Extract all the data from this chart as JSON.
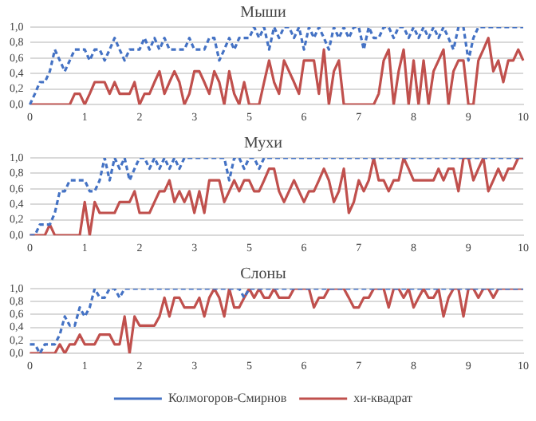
{
  "chart_data": [
    {
      "type": "line",
      "title": "Мыши",
      "categories": [
        "0",
        null,
        null,
        null,
        null,
        null,
        null,
        null,
        null,
        null,
        null,
        "1",
        null,
        null,
        null,
        null,
        null,
        null,
        null,
        null,
        null,
        null,
        "2",
        null,
        null,
        null,
        null,
        null,
        null,
        null,
        null,
        null,
        null,
        "3",
        null,
        null,
        null,
        null,
        null,
        null,
        null,
        null,
        null,
        null,
        "5",
        null,
        null,
        null,
        null,
        null,
        null,
        null,
        null,
        null,
        null,
        "6",
        null,
        null,
        null,
        null,
        null,
        null,
        null,
        null,
        null,
        null,
        "7",
        null,
        null,
        null,
        null,
        null,
        null,
        null,
        null,
        null,
        null,
        "8",
        null,
        null,
        null,
        null,
        null,
        null,
        null,
        null,
        null,
        null,
        "9",
        null,
        null,
        null,
        null,
        null,
        null,
        null,
        null,
        null,
        null,
        "10"
      ],
      "series": [
        {
          "color": "#4472c4",
          "line_style": "dashed",
          "values": [
            0,
            0.14,
            0.29,
            0.29,
            0.43,
            0.71,
            0.57,
            0.43,
            0.57,
            0.71,
            0.71,
            0.71,
            0.57,
            0.71,
            0.71,
            0.57,
            0.71,
            0.86,
            0.71,
            0.57,
            0.71,
            0.71,
            0.71,
            0.86,
            0.71,
            0.86,
            0.71,
            0.86,
            0.71,
            0.71,
            0.71,
            0.71,
            0.86,
            0.71,
            0.71,
            0.71,
            0.86,
            0.86,
            0.57,
            0.71,
            0.86,
            0.71,
            0.86,
            0.86,
            0.86,
            1,
            0.86,
            1,
            0.71,
            1,
            0.86,
            1,
            1,
            0.86,
            1,
            0.71,
            1,
            0.86,
            1,
            0.86,
            0.71,
            1,
            0.86,
            1,
            0.86,
            1,
            1,
            0.71,
            1,
            0.86,
            0.86,
            1,
            1,
            0.86,
            1,
            1,
            0.86,
            1,
            0.86,
            1,
            0.86,
            1,
            0.86,
            1,
            0.86,
            0.71,
            1,
            1,
            0.57,
            0.86,
            1,
            1,
            1,
            1,
            1,
            1,
            1,
            1,
            1,
            1
          ]
        },
        {
          "color": "#c0504d",
          "line_style": "solid",
          "values": [
            0,
            0,
            0,
            0,
            0,
            0,
            0,
            0,
            0,
            0.14,
            0.14,
            0,
            0.14,
            0.29,
            0.29,
            0.29,
            0.14,
            0.29,
            0.14,
            0.14,
            0.14,
            0.29,
            0,
            0.14,
            0.14,
            0.29,
            0.43,
            0.14,
            0.29,
            0.43,
            0.29,
            0,
            0.14,
            0.43,
            0.43,
            0.29,
            0.14,
            0.43,
            0.29,
            0,
            0.43,
            0.14,
            0,
            0.29,
            0,
            0,
            0,
            0.29,
            0.57,
            0.29,
            0.14,
            0.57,
            0.43,
            0.29,
            0.14,
            0.57,
            0.57,
            0.57,
            0.14,
            0.71,
            0,
            0.43,
            0.57,
            0,
            0,
            0,
            0,
            0,
            0,
            0,
            0.14,
            0.57,
            0.71,
            0,
            0.43,
            0.71,
            0,
            0.57,
            0,
            0.57,
            0,
            0.43,
            0.57,
            0.71,
            0,
            0.43,
            0.57,
            0.57,
            0,
            0,
            0.57,
            0.71,
            0.86,
            0.43,
            0.57,
            0.29,
            0.57,
            0.57,
            0.71,
            0.57
          ]
        }
      ],
      "ylim": [
        0,
        1
      ],
      "yticks": [
        {
          "value": 0,
          "label": "0,0"
        },
        {
          "value": 0.2,
          "label": "0,2"
        },
        {
          "value": 0.4,
          "label": "0,4"
        },
        {
          "value": 0.6,
          "label": "0,6"
        },
        {
          "value": 0.8,
          "label": "0,8"
        },
        {
          "value": 1,
          "label": "1,0"
        }
      ],
      "grid": "y",
      "legend": false
    },
    {
      "type": "line",
      "title": "Мухи",
      "categories": [
        "0",
        null,
        null,
        null,
        null,
        null,
        null,
        null,
        null,
        null,
        null,
        "1",
        null,
        null,
        null,
        null,
        null,
        null,
        null,
        null,
        null,
        null,
        "2",
        null,
        null,
        null,
        null,
        null,
        null,
        null,
        null,
        null,
        null,
        "3",
        null,
        null,
        null,
        null,
        null,
        null,
        null,
        null,
        null,
        null,
        "5",
        null,
        null,
        null,
        null,
        null,
        null,
        null,
        null,
        null,
        null,
        "6",
        null,
        null,
        null,
        null,
        null,
        null,
        null,
        null,
        null,
        null,
        "7",
        null,
        null,
        null,
        null,
        null,
        null,
        null,
        null,
        null,
        null,
        "8",
        null,
        null,
        null,
        null,
        null,
        null,
        null,
        null,
        null,
        null,
        "9",
        null,
        null,
        null,
        null,
        null,
        null,
        null,
        null,
        null,
        null,
        "10"
      ],
      "series": [
        {
          "color": "#4472c4",
          "line_style": "dashed",
          "values": [
            0,
            0,
            0.14,
            0.14,
            0.14,
            0.29,
            0.57,
            0.57,
            0.71,
            0.71,
            0.71,
            0.71,
            0.57,
            0.57,
            0.71,
            1,
            0.71,
            1,
            0.86,
            1,
            0.71,
            0.86,
            1,
            1,
            0.86,
            1,
            0.86,
            1,
            0.86,
            1,
            0.86,
            1,
            1,
            1,
            1,
            1,
            1,
            1,
            1,
            1,
            0.71,
            1,
            1,
            0.86,
            1,
            1,
            0.86,
            1,
            1,
            1,
            1,
            1,
            1,
            1,
            1,
            1,
            1,
            1,
            1,
            1,
            1,
            1,
            1,
            1,
            1,
            1,
            1,
            1,
            1,
            1,
            1,
            1,
            1,
            1,
            1,
            1,
            1,
            1,
            1,
            1,
            1,
            1,
            1,
            1,
            1,
            1,
            1,
            1,
            1,
            1,
            1,
            1,
            1,
            1,
            1,
            1,
            1,
            1,
            1,
            1
          ]
        },
        {
          "color": "#c0504d",
          "line_style": "solid",
          "values": [
            0,
            0,
            0,
            0,
            0.14,
            0,
            0,
            0,
            0,
            0,
            0,
            0.43,
            0,
            0.43,
            0.29,
            0.29,
            0.29,
            0.29,
            0.43,
            0.43,
            0.43,
            0.57,
            0.29,
            0.29,
            0.29,
            0.43,
            0.57,
            0.57,
            0.71,
            0.43,
            0.57,
            0.43,
            0.57,
            0.29,
            0.57,
            0.29,
            0.71,
            0.71,
            0.71,
            0.43,
            0.57,
            0.71,
            0.57,
            0.71,
            0.71,
            0.57,
            0.57,
            0.71,
            0.86,
            0.86,
            0.57,
            0.43,
            0.57,
            0.71,
            0.57,
            0.43,
            0.57,
            0.57,
            0.71,
            0.86,
            0.71,
            0.43,
            0.57,
            0.86,
            0.29,
            0.43,
            0.71,
            0.57,
            0.71,
            1,
            0.71,
            0.71,
            0.57,
            0.71,
            0.71,
            1,
            0.86,
            0.71,
            0.71,
            0.71,
            0.71,
            0.71,
            0.86,
            0.71,
            0.86,
            0.86,
            0.57,
            1,
            1,
            0.71,
            0.86,
            1,
            0.57,
            0.71,
            0.86,
            0.71,
            0.86,
            0.86,
            1,
            1
          ]
        }
      ],
      "ylim": [
        0,
        1
      ],
      "yticks": [
        {
          "value": 0,
          "label": "0,0"
        },
        {
          "value": 0.2,
          "label": "0,2"
        },
        {
          "value": 0.4,
          "label": "0,4"
        },
        {
          "value": 0.6,
          "label": "0,6"
        },
        {
          "value": 0.8,
          "label": "0,8"
        },
        {
          "value": 1,
          "label": "1,0"
        }
      ],
      "grid": "y",
      "legend": false
    },
    {
      "type": "line",
      "title": "Слоны",
      "categories": [
        "0",
        null,
        null,
        null,
        null,
        null,
        null,
        null,
        null,
        null,
        null,
        "1",
        null,
        null,
        null,
        null,
        null,
        null,
        null,
        null,
        null,
        null,
        "2",
        null,
        null,
        null,
        null,
        null,
        null,
        null,
        null,
        null,
        null,
        "3",
        null,
        null,
        null,
        null,
        null,
        null,
        null,
        null,
        null,
        null,
        "5",
        null,
        null,
        null,
        null,
        null,
        null,
        null,
        null,
        null,
        null,
        "6",
        null,
        null,
        null,
        null,
        null,
        null,
        null,
        null,
        null,
        null,
        "7",
        null,
        null,
        null,
        null,
        null,
        null,
        null,
        null,
        null,
        null,
        "8",
        null,
        null,
        null,
        null,
        null,
        null,
        null,
        null,
        null,
        null,
        "9",
        null,
        null,
        null,
        null,
        null,
        null,
        null,
        null,
        null,
        null,
        "10"
      ],
      "series": [
        {
          "name": "Колмогоров-Смирнов",
          "color": "#4472c4",
          "line_style": "dashed",
          "values": [
            0.14,
            0.14,
            0,
            0.14,
            0.14,
            0.14,
            0.29,
            0.57,
            0.43,
            0.43,
            0.71,
            0.57,
            0.71,
            1,
            0.86,
            0.86,
            1,
            1,
            0.86,
            1,
            1,
            1,
            1,
            1,
            1,
            1,
            1,
            1,
            1,
            1,
            1,
            1,
            1,
            1,
            1,
            1,
            1,
            1,
            1,
            1,
            1,
            1,
            1,
            0.86,
            1,
            1,
            1,
            1,
            1,
            1,
            1,
            1,
            1,
            1,
            1,
            1,
            1,
            1,
            1,
            1,
            1,
            1,
            1,
            1,
            1,
            1,
            1,
            1,
            1,
            1,
            1,
            1,
            1,
            1,
            1,
            1,
            1,
            1,
            1,
            1,
            1,
            1,
            1,
            1,
            1,
            1,
            1,
            1,
            1,
            1,
            1,
            1,
            1,
            1,
            1,
            1,
            1,
            1,
            1,
            1
          ]
        },
        {
          "name": "хи-квадрат",
          "color": "#c0504d",
          "line_style": "solid",
          "values": [
            0,
            0,
            0,
            0,
            0,
            0,
            0.14,
            0,
            0.14,
            0.14,
            0.29,
            0.14,
            0.14,
            0.14,
            0.29,
            0.29,
            0.29,
            0.14,
            0.14,
            0.57,
            0,
            0.57,
            0.43,
            0.43,
            0.43,
            0.43,
            0.57,
            0.86,
            0.57,
            0.86,
            0.86,
            0.71,
            0.71,
            0.71,
            0.86,
            0.57,
            0.86,
            1,
            0.86,
            0.57,
            1,
            0.71,
            0.71,
            0.86,
            1,
            0.86,
            1,
            0.86,
            0.86,
            1,
            0.86,
            0.86,
            0.86,
            1,
            1,
            1,
            1,
            0.71,
            0.86,
            0.86,
            1,
            1,
            1,
            1,
            0.86,
            0.71,
            0.71,
            0.86,
            0.86,
            1,
            1,
            1,
            0.71,
            1,
            1,
            0.86,
            1,
            0.71,
            0.86,
            1,
            0.86,
            0.86,
            1,
            0.57,
            0.86,
            1,
            1,
            0.57,
            1,
            1,
            0.86,
            1,
            1,
            0.86,
            1,
            1,
            1,
            1,
            1,
            1
          ]
        }
      ],
      "ylim": [
        0,
        1
      ],
      "yticks": [
        {
          "value": 0,
          "label": "0,0"
        },
        {
          "value": 0.2,
          "label": "0,2"
        },
        {
          "value": 0.4,
          "label": "0,4"
        },
        {
          "value": 0.6,
          "label": "0,6"
        },
        {
          "value": 0.8,
          "label": "0,8"
        },
        {
          "value": 1,
          "label": "1,0"
        }
      ],
      "grid": "y",
      "legend": "bottom"
    }
  ]
}
